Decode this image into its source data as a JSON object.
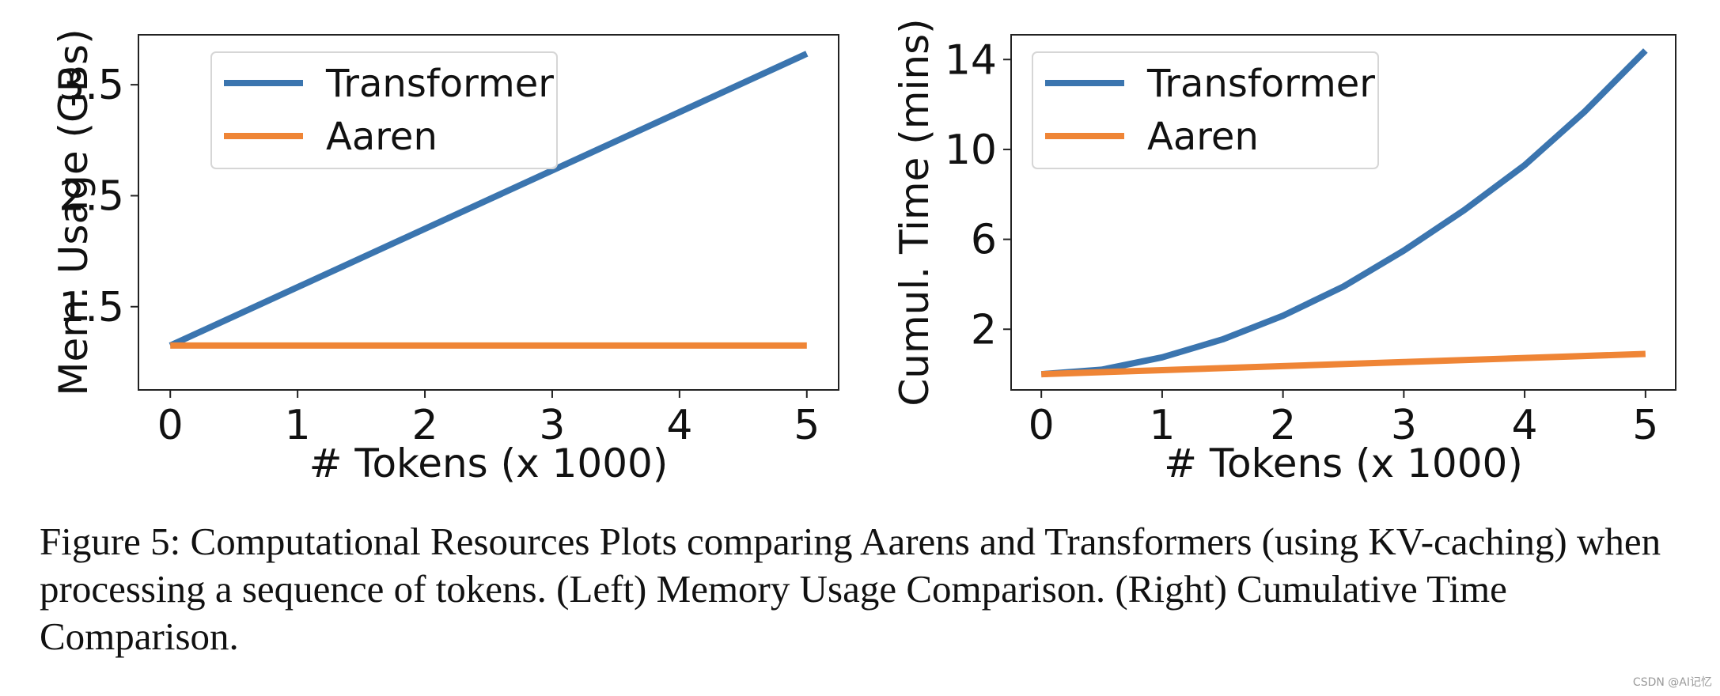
{
  "colors": {
    "Transformer": "#3b75af",
    "Aaren": "#ef8536"
  },
  "chart_data": [
    {
      "type": "line",
      "xlabel": "# Tokens (x 1000)",
      "ylabel": "Mem. Usage (GBs)",
      "xlim": [
        -0.25,
        5.25
      ],
      "ylim": [
        0.75,
        3.95
      ],
      "xticks": [
        0,
        1,
        2,
        3,
        4,
        5
      ],
      "yticks": [
        1.5,
        2.5,
        3.5
      ],
      "legend_position": "top-left",
      "grid": false,
      "series": [
        {
          "name": "Transformer",
          "x": [
            0,
            5
          ],
          "y": [
            1.15,
            3.78
          ]
        },
        {
          "name": "Aaren",
          "x": [
            0,
            5
          ],
          "y": [
            1.15,
            1.15
          ]
        }
      ]
    },
    {
      "type": "line",
      "xlabel": "# Tokens (x 1000)",
      "ylabel": "Cumul. Time (mins)",
      "xlim": [
        -0.25,
        5.25
      ],
      "ylim": [
        -0.7,
        15.1
      ],
      "xticks": [
        0,
        1,
        2,
        3,
        4,
        5
      ],
      "yticks": [
        2,
        6,
        10,
        14
      ],
      "legend_position": "top-left",
      "grid": false,
      "series": [
        {
          "name": "Transformer",
          "x": [
            0,
            0.5,
            1,
            1.5,
            2,
            2.5,
            3,
            3.5,
            4,
            4.5,
            5
          ],
          "y": [
            0,
            0.2,
            0.75,
            1.55,
            2.6,
            3.9,
            5.5,
            7.3,
            9.3,
            11.7,
            14.4
          ]
        },
        {
          "name": "Aaren",
          "x": [
            0,
            1,
            2,
            3,
            4,
            5
          ],
          "y": [
            0,
            0.18,
            0.36,
            0.54,
            0.72,
            0.9
          ]
        }
      ]
    }
  ],
  "caption": "Figure 5: Computational Resources Plots comparing Aarens and Transformers (using KV-caching) when processing a sequence of tokens. (Left) Memory Usage Comparison. (Right) Cumulative Time Comparison.",
  "watermark": "CSDN @AI记忆"
}
